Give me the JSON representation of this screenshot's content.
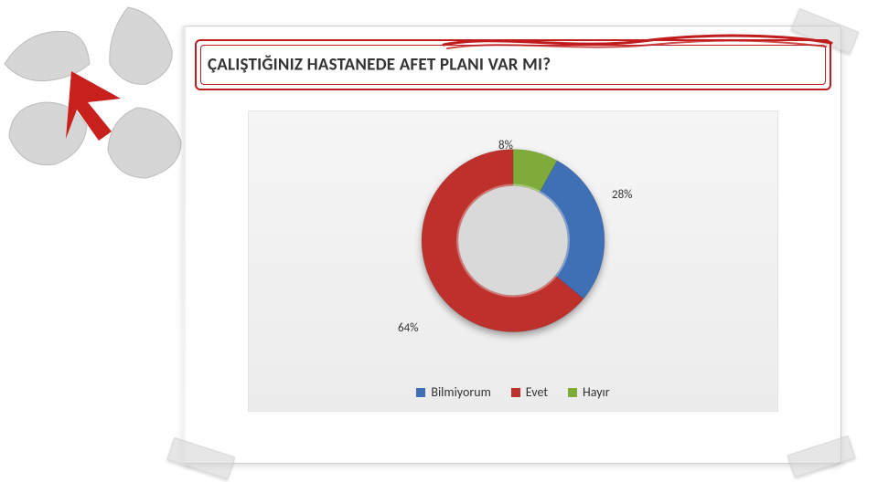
{
  "title": "ÇALIŞTIĞINIZ HASTANEDE AFET PLANI VAR MI?",
  "title_color": "#333333",
  "title_fontsize": 19,
  "title_frame_color": "#c01b1d",
  "card": {
    "background": "#ffffff",
    "shadow": "0 2px 8px rgba(0,0,0,0.15)"
  },
  "chart": {
    "type": "donut",
    "inner_radius": 60,
    "outer_radius": 100,
    "center_fill": "#d9d9d9",
    "plot_background": "#f1f1f1",
    "segment_shadow": "0 4px 4px rgba(0,0,0,0.35)",
    "start_angle_deg": -90,
    "series": [
      {
        "name": "Hayır",
        "value": 8,
        "pct_label": "8%",
        "color": "#7eab3a",
        "label_dx": -16,
        "label_dy": -114
      },
      {
        "name": "Bilmiyorum",
        "value": 28,
        "pct_label": "28%",
        "color": "#3f6fb5",
        "label_dx": 108,
        "label_dy": -60
      },
      {
        "name": "Evet",
        "value": 64,
        "pct_label": "64%",
        "color": "#bd302b",
        "label_dx": -126,
        "label_dy": 86
      }
    ],
    "label_fontsize": 13,
    "label_color": "#333333"
  },
  "legend": {
    "fontsize": 14,
    "items": [
      {
        "label": "Bilmiyorum",
        "color": "#3f6fb5"
      },
      {
        "label": "Evet",
        "color": "#bd302b"
      },
      {
        "label": "Hayır",
        "color": "#7eab3a"
      }
    ]
  },
  "decor": {
    "arrow_color": "#c8201d",
    "hands_tone": "#cfcfcf"
  }
}
